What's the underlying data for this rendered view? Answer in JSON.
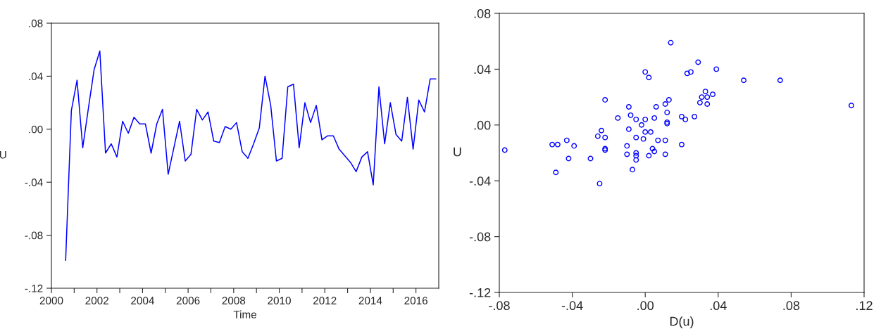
{
  "chart_data": [
    {
      "type": "line",
      "xlabel": "Time",
      "ylabel": "U",
      "x": [
        2000.625,
        2000.875,
        2001.125,
        2001.375,
        2001.625,
        2001.875,
        2002.125,
        2002.375,
        2002.625,
        2002.875,
        2003.125,
        2003.375,
        2003.625,
        2003.875,
        2004.125,
        2004.375,
        2004.625,
        2004.875,
        2005.125,
        2005.375,
        2005.625,
        2005.875,
        2006.125,
        2006.375,
        2006.625,
        2006.875,
        2007.125,
        2007.375,
        2007.625,
        2007.875,
        2008.125,
        2008.375,
        2008.625,
        2008.875,
        2009.125,
        2009.375,
        2009.625,
        2009.875,
        2010.125,
        2010.375,
        2010.625,
        2010.875,
        2011.125,
        2011.375,
        2011.625,
        2011.875,
        2012.125,
        2012.375,
        2012.625,
        2012.875,
        2013.125,
        2013.375,
        2013.625,
        2013.875,
        2014.125,
        2014.375,
        2014.625,
        2014.875,
        2015.125,
        2015.375,
        2015.625,
        2015.875,
        2016.125,
        2016.375,
        2016.625,
        2016.875
      ],
      "series": [
        {
          "color": "#0000ff",
          "values": [
            -0.099,
            0.014,
            0.037,
            -0.014,
            0.016,
            0.045,
            0.059,
            -0.018,
            -0.011,
            -0.021,
            0.006,
            -0.003,
            0.009,
            0.004,
            0.004,
            -0.018,
            0.004,
            0.015,
            -0.034,
            -0.014,
            0.006,
            -0.024,
            -0.019,
            0.015,
            0.007,
            0.013,
            -0.009,
            -0.01,
            0.002,
            0.0,
            0.005,
            -0.017,
            -0.022,
            -0.011,
            0.001,
            0.04,
            0.018,
            -0.024,
            -0.022,
            0.032,
            0.034,
            -0.014,
            0.02,
            0.005,
            0.018,
            -0.008,
            -0.005,
            -0.005,
            -0.015,
            -0.02,
            -0.025,
            -0.032,
            -0.021,
            -0.017,
            -0.042,
            0.032,
            -0.011,
            0.02,
            -0.004,
            -0.009,
            0.024,
            -0.015,
            0.022,
            0.013,
            0.038,
            0.038
          ]
        }
      ],
      "xlim": [
        2000,
        2017
      ],
      "xticks": [
        2000,
        {
          "value": 2001,
          "label": null
        },
        2002,
        {
          "value": 2003,
          "label": null
        },
        2004,
        {
          "value": 2005,
          "label": null
        },
        2006,
        {
          "value": 2007,
          "label": null
        },
        2008,
        {
          "value": 2009,
          "label": null
        },
        2010,
        {
          "value": 2011,
          "label": null
        },
        2012,
        {
          "value": 2013,
          "label": null
        },
        2014,
        {
          "value": 2015,
          "label": null
        },
        2016
      ],
      "ylim": [
        -0.12,
        0.08
      ],
      "yticks": [
        {
          "value": -0.12,
          "label": "-.12"
        },
        {
          "value": -0.08,
          "label": "-.08"
        },
        {
          "value": -0.04,
          "label": "-.04"
        },
        {
          "value": 0,
          "label": ".00"
        },
        {
          "value": 0.04,
          "label": ".04"
        },
        {
          "value": 0.08,
          "label": ".08"
        }
      ],
      "grid": false,
      "legend": false,
      "marker": "none",
      "line_style": "solid"
    },
    {
      "type": "scatter",
      "xlabel": "D(u)",
      "ylabel": "U",
      "x": [
        0.113,
        0.023,
        -0.051,
        0.03,
        0.029,
        0.014,
        -0.077,
        0.007,
        -0.01,
        0.027,
        -0.009,
        0.012,
        -0.005,
        0.0,
        -0.022,
        0.022,
        0.011,
        -0.049,
        0.02,
        0.02,
        -0.03,
        0.005,
        0.034,
        -0.008,
        0.006,
        -0.022,
        -0.001,
        0.012,
        -0.002,
        0.005,
        -0.022,
        -0.005,
        0.011,
        0.012,
        0.039,
        -0.022,
        -0.042,
        0.002,
        0.054,
        0.002,
        -0.048,
        0.034,
        -0.015,
        0.013,
        -0.026,
        0.003,
        0.0,
        -0.01,
        -0.005,
        -0.005,
        -0.007,
        0.011,
        0.004,
        -0.025,
        0.074,
        -0.043,
        0.031,
        -0.024,
        -0.005,
        0.033,
        -0.039,
        0.037,
        -0.009,
        0.025,
        0.0
      ],
      "series": [
        {
          "color": "#0000ff",
          "values": [
            0.014,
            0.037,
            -0.014,
            0.016,
            0.045,
            0.059,
            -0.018,
            -0.011,
            -0.021,
            0.006,
            -0.003,
            0.009,
            0.004,
            0.004,
            -0.018,
            0.004,
            0.015,
            -0.034,
            -0.014,
            0.006,
            -0.024,
            -0.019,
            0.015,
            0.007,
            0.013,
            -0.009,
            -0.01,
            0.002,
            0.0,
            0.005,
            -0.017,
            -0.022,
            -0.011,
            0.001,
            0.04,
            0.018,
            -0.024,
            -0.022,
            0.032,
            0.034,
            -0.014,
            0.02,
            0.005,
            0.018,
            -0.008,
            -0.005,
            -0.005,
            -0.015,
            -0.02,
            -0.025,
            -0.032,
            -0.021,
            -0.017,
            -0.042,
            0.032,
            -0.011,
            0.02,
            -0.004,
            -0.009,
            0.024,
            -0.015,
            0.022,
            0.013,
            0.038,
            0.038
          ]
        }
      ],
      "xlim": [
        -0.08,
        0.12
      ],
      "xticks": [
        {
          "value": -0.08,
          "label": "-.08"
        },
        {
          "value": -0.04,
          "label": "-.04"
        },
        {
          "value": 0,
          "label": ".00"
        },
        {
          "value": 0.04,
          "label": ".04"
        },
        {
          "value": 0.08,
          "label": ".08"
        },
        {
          "value": 0.12,
          "label": ".12"
        }
      ],
      "ylim": [
        -0.12,
        0.08
      ],
      "yticks": [
        {
          "value": -0.12,
          "label": "-.12"
        },
        {
          "value": -0.08,
          "label": "-.08"
        },
        {
          "value": -0.04,
          "label": "-.04"
        },
        {
          "value": 0,
          "label": ".00"
        },
        {
          "value": 0.04,
          "label": ".04"
        },
        {
          "value": 0.08,
          "label": ".08"
        }
      ],
      "grid": false,
      "legend": false,
      "marker": "circle"
    }
  ]
}
